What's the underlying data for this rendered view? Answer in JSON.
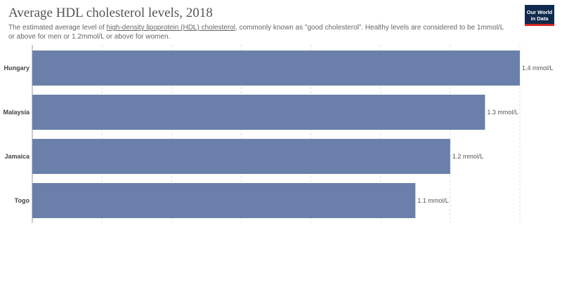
{
  "header": {
    "title": "Average HDL cholesterol levels, 2018",
    "subtitle_before": "The estimated average level of ",
    "subtitle_link": "high-density lipoprotein (HDL) cholesterol",
    "subtitle_after": ", commonly known as \"good cholesterol\". Healthy levels are considered to be 1mmol/L or above for men or 1.2mmol/L or above for women."
  },
  "logo": {
    "line1": "Our World",
    "line2": "in Data"
  },
  "colors": {
    "bar": "#6a80aa",
    "grid": "#dddddd",
    "axis": "#999999",
    "brand_bg": "#0f2a4e",
    "brand_accent": "#ce261e"
  },
  "chart_data": {
    "type": "bar",
    "orientation": "horizontal",
    "categories": [
      "Hungary",
      "Malaysia",
      "Jamaica",
      "Togo"
    ],
    "values": [
      1.4,
      1.3,
      1.2,
      1.1
    ],
    "value_labels": [
      "1.4 mmol/L",
      "1.3 mmol/L",
      "1.2 mmol/L",
      "1.1 mmol/L"
    ],
    "xlim": [
      0,
      1.4
    ],
    "grid_ticks": [
      0,
      0.2,
      0.4,
      0.6,
      0.8,
      1.0,
      1.2,
      1.4
    ],
    "grid": true
  }
}
